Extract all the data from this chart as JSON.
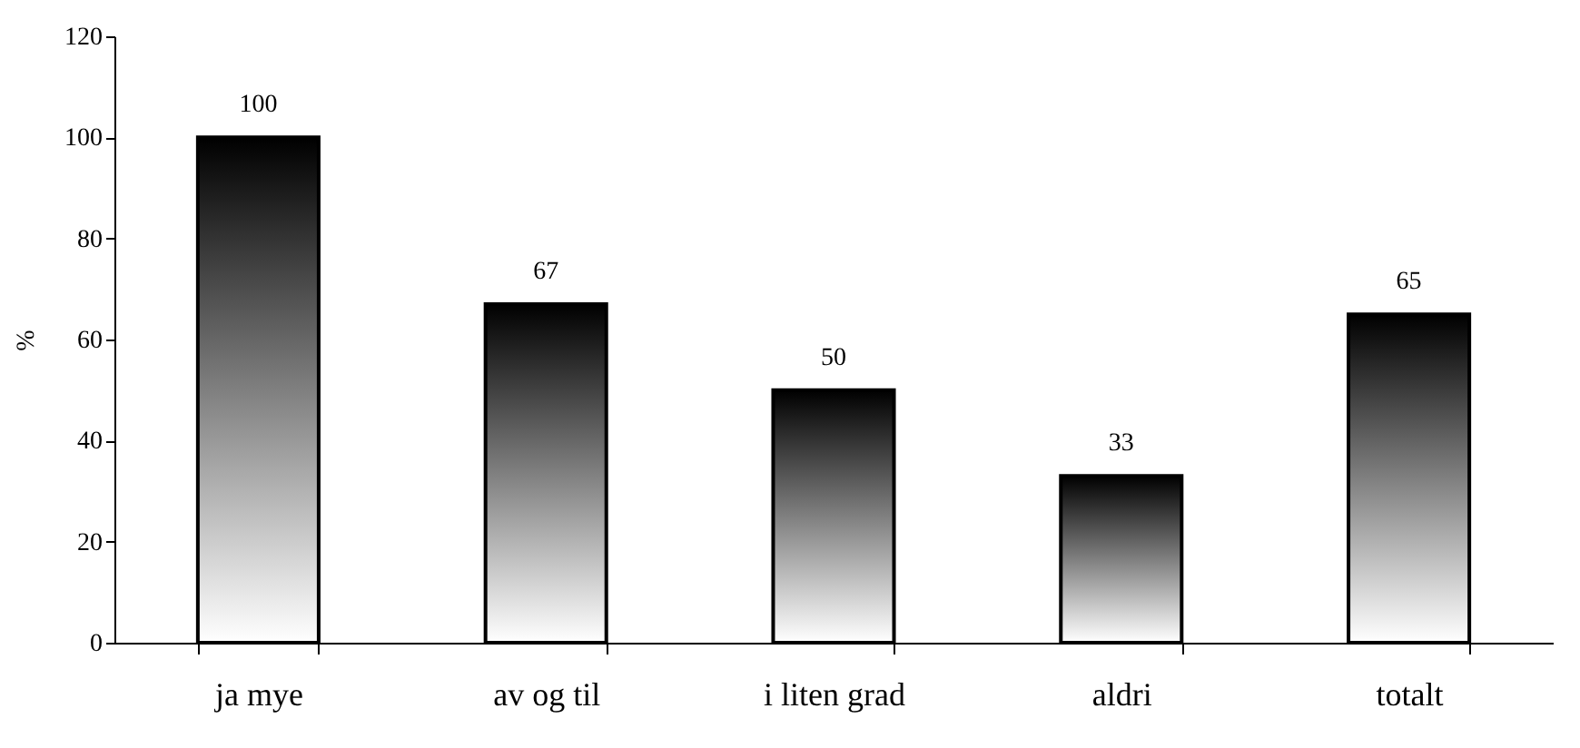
{
  "chart_data": {
    "type": "bar",
    "ylabel": "%",
    "categories": [
      "ja mye",
      "av og til",
      "i liten grad",
      "aldri",
      "totalt"
    ],
    "values": [
      100,
      67,
      50,
      33,
      65
    ],
    "color": "#000000",
    "ylim": [
      0,
      120
    ],
    "yticks": [
      0,
      20,
      40,
      60,
      80,
      100,
      120
    ],
    "grid": false,
    "data_labels": true
  }
}
